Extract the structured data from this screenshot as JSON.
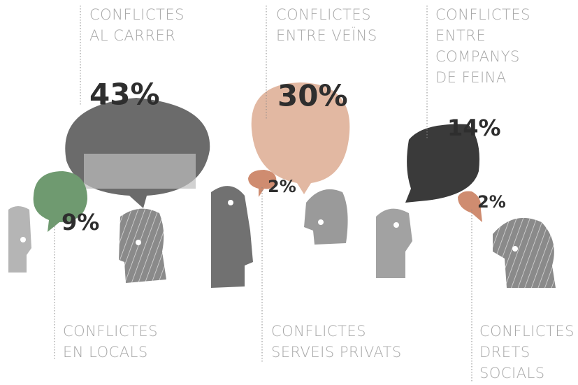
{
  "items": [
    {
      "label_lines": [
        "CONFLICTES",
        "AL CARRER"
      ],
      "value": "43%"
    },
    {
      "label_lines": [
        "CONFLICTES",
        "ENTRE VEÏNS"
      ],
      "value": "30%"
    },
    {
      "label_lines": [
        "CONFLICTES",
        "ENTRE",
        "COMPANYS",
        "DE FEINA"
      ],
      "value": "14%"
    },
    {
      "label_lines": [
        "CONFLICTES",
        "EN LOCALS"
      ],
      "value": "9%"
    },
    {
      "label_lines": [
        "CONFLICTES",
        "SERVEIS PRIVATS"
      ],
      "value": "2%"
    },
    {
      "label_lines": [
        "CONFLICTES",
        "DRETS",
        "SOCIALS"
      ],
      "value": "2%"
    }
  ]
}
